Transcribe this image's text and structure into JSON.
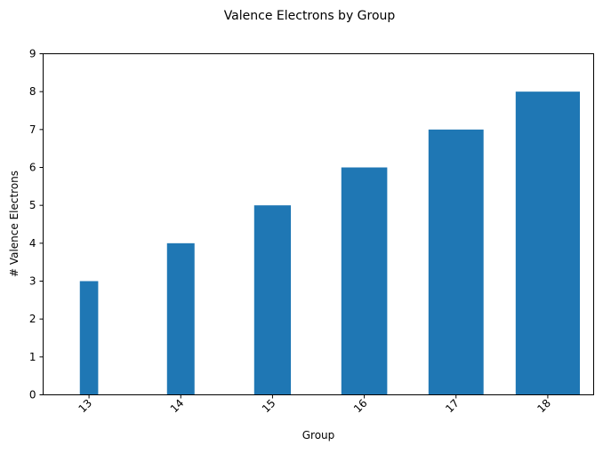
{
  "chart_data": {
    "type": "bar",
    "title": "Valence Electrons by Group",
    "xlabel": "Group",
    "ylabel": "# Valence Electrons",
    "categories": [
      "13",
      "14",
      "15",
      "16",
      "17",
      "18"
    ],
    "values": [
      3,
      4,
      5,
      6,
      7,
      8
    ],
    "bar_width_fraction": [
      0.2,
      0.3,
      0.4,
      0.5,
      0.6,
      0.7
    ],
    "ylim": [
      0,
      9
    ],
    "yticks": [
      0,
      1,
      2,
      3,
      4,
      5,
      6,
      7,
      8,
      9
    ],
    "xtick_rotation_deg": 45,
    "grid": false,
    "legend": "none",
    "colors": {
      "bar": "#1f77b4",
      "axis": "#000000",
      "background": "#ffffff"
    }
  }
}
